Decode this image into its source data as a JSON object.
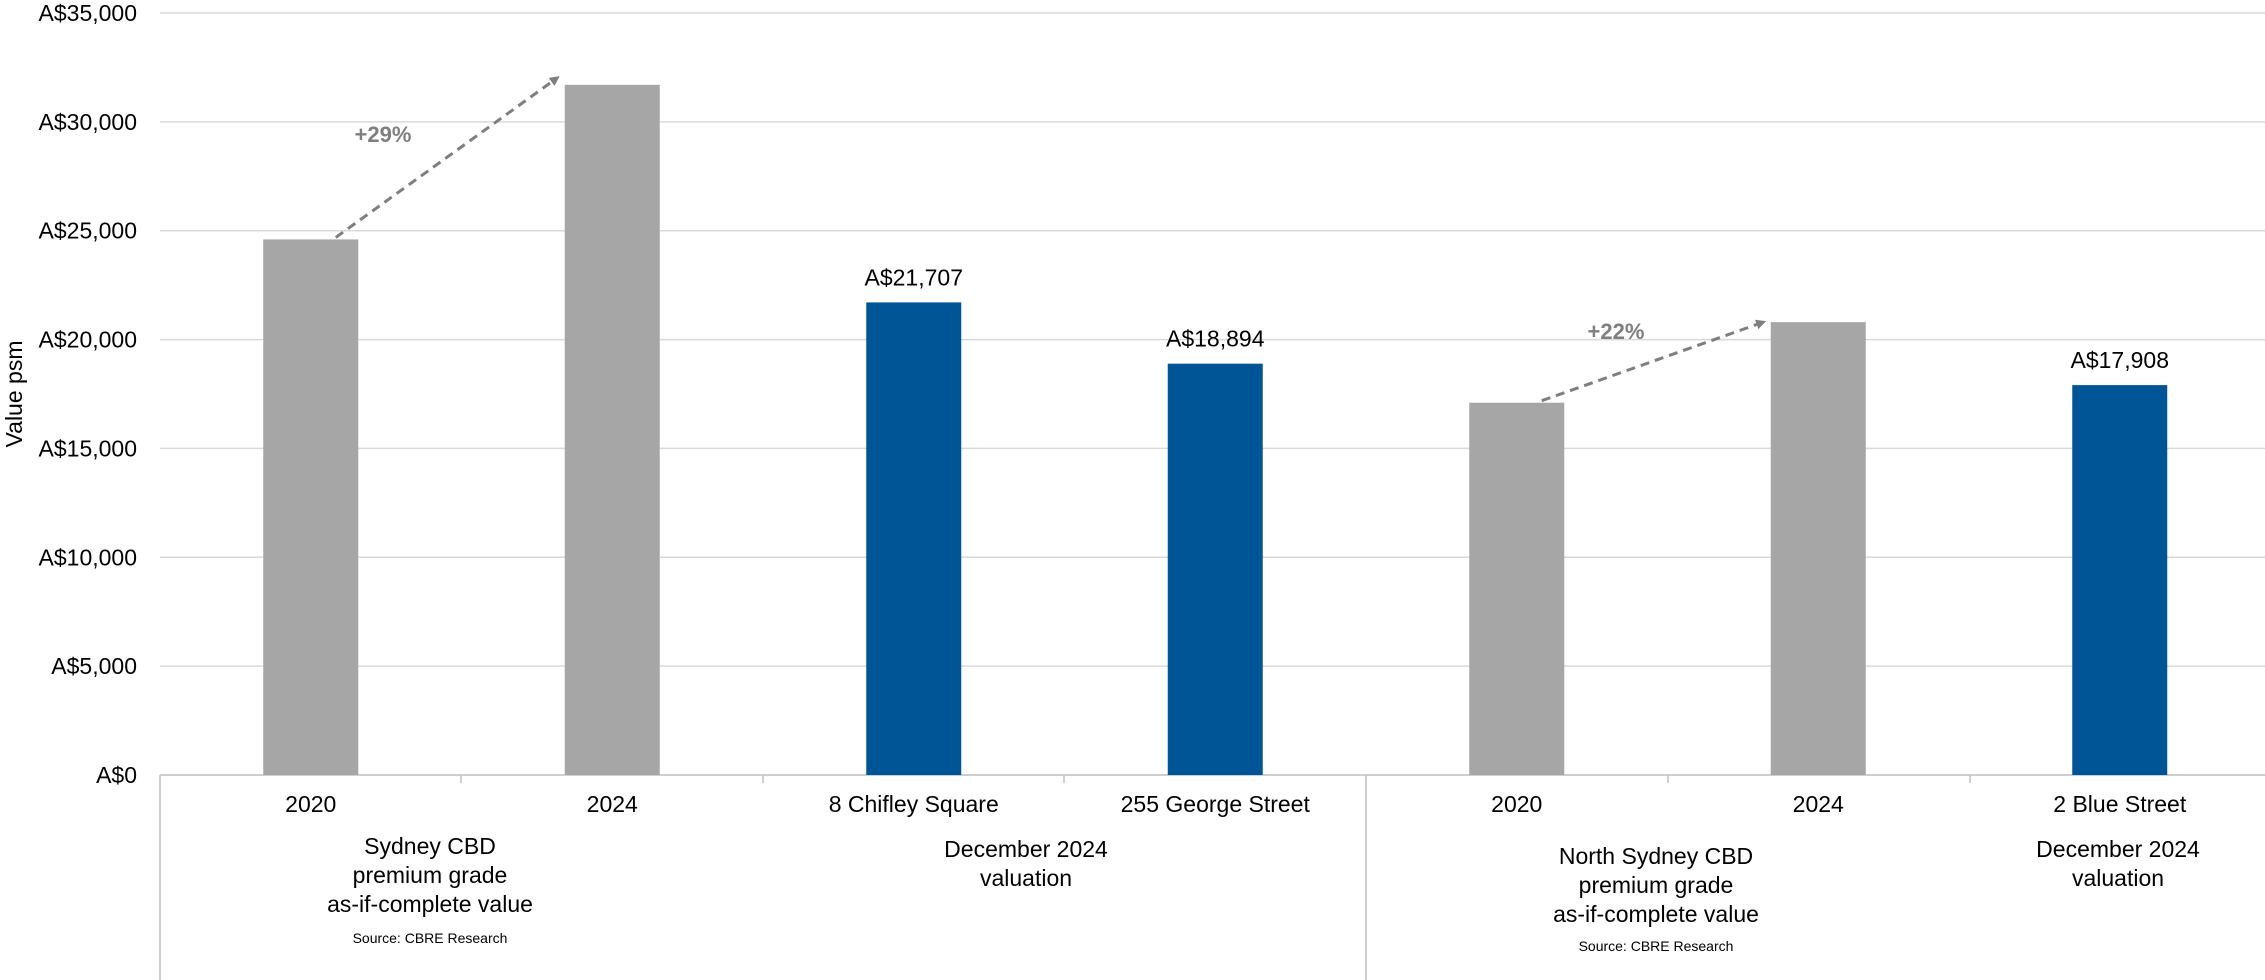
{
  "chart_data": {
    "type": "bar",
    "ylabel": "Value psm",
    "ylim": [
      0,
      35000
    ],
    "y_ticks": [
      "A$0",
      "A$5,000",
      "A$10,000",
      "A$15,000",
      "A$20,000",
      "A$25,000",
      "A$30,000",
      "A$35,000"
    ],
    "grid": true,
    "categories": [
      "2020",
      "2024",
      "8 Chifley Square",
      "255 George Street",
      "2020",
      "2024",
      "2 Blue Street"
    ],
    "values": [
      24600,
      31700,
      21707,
      18894,
      17100,
      20800,
      17908
    ],
    "bar_colors": [
      "#a6a6a6",
      "#a6a6a6",
      "#005596",
      "#005596",
      "#a6a6a6",
      "#a6a6a6",
      "#005596"
    ],
    "data_labels": [
      "",
      "",
      "A$21,707",
      "A$18,894",
      "",
      "",
      "A$17,908"
    ],
    "groups": [
      {
        "lines": [
          "Sydney CBD",
          "premium grade",
          "as-if-complete value"
        ],
        "source": "Source: CBRE Research"
      },
      {
        "lines": [
          "December 2024",
          "valuation"
        ],
        "source": ""
      },
      {
        "lines": [
          "North Sydney CBD",
          "premium grade",
          "as-if-complete value"
        ],
        "source": "Source: CBRE Research"
      },
      {
        "lines": [
          "December 2024",
          "valuation"
        ],
        "source": ""
      }
    ],
    "growth_annotations": [
      {
        "label": "+29%",
        "from_category": 0,
        "to_category": 1
      },
      {
        "label": "+22%",
        "from_category": 4,
        "to_category": 5
      }
    ]
  }
}
